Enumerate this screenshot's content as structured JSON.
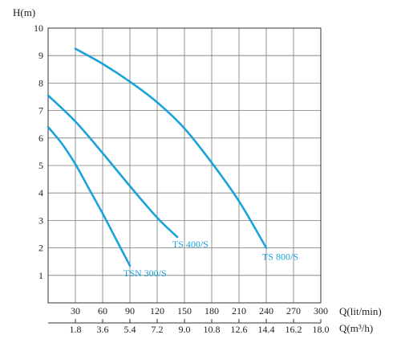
{
  "chart_data": {
    "type": "line",
    "y_axis": {
      "label": "H(m)",
      "range": [
        0,
        10
      ],
      "ticks": [
        1,
        2,
        3,
        4,
        5,
        6,
        7,
        8,
        9,
        10
      ]
    },
    "x_axis": {
      "label": "Q(lit/min)",
      "range": [
        0,
        300
      ],
      "ticks": [
        30,
        60,
        90,
        120,
        150,
        180,
        210,
        240,
        270,
        300
      ]
    },
    "x_axis_secondary": {
      "label": "Q(m³/h)",
      "ticks": [
        "1.8",
        "3.6",
        "5.4",
        "7.2",
        "9.0",
        "10.8",
        "12.6",
        "14.4",
        "16.2",
        "18.0"
      ]
    },
    "grid": true,
    "series": [
      {
        "name": "TS 800/S",
        "color": "#1aa3d9",
        "x": [
          30,
          60,
          90,
          120,
          150,
          180,
          210,
          240
        ],
        "y": [
          9.25,
          8.7,
          8.05,
          7.3,
          6.35,
          5.1,
          3.7,
          2.0
        ]
      },
      {
        "name": "TS 400/S",
        "color": "#1aa3d9",
        "x": [
          0,
          30,
          60,
          90,
          120,
          142
        ],
        "y": [
          7.55,
          6.6,
          5.45,
          4.25,
          3.1,
          2.4
        ]
      },
      {
        "name": "TSN 300/S",
        "color": "#1aa3d9",
        "x": [
          0,
          15,
          30,
          45,
          60,
          75,
          90
        ],
        "y": [
          6.4,
          5.8,
          5.05,
          4.15,
          3.25,
          2.3,
          1.35
        ]
      }
    ]
  }
}
